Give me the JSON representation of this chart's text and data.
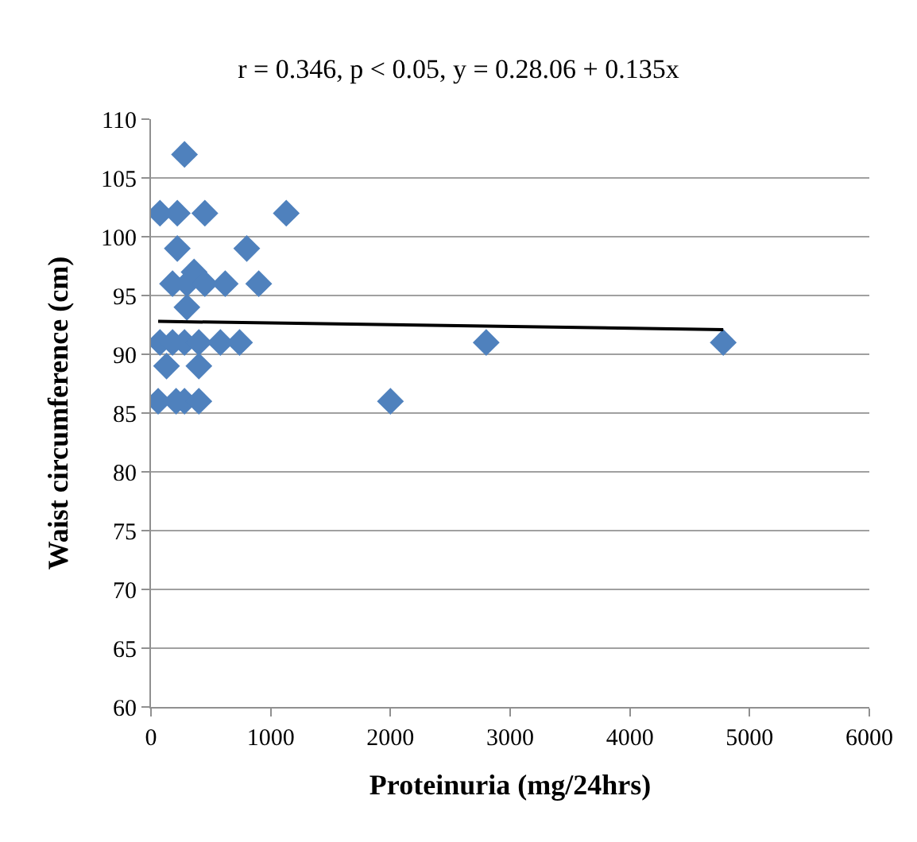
{
  "chart_data": {
    "type": "scatter",
    "title": "r = 0.346, p < 0.05, y = 0.28.06 + 0.135x",
    "xlabel": "Proteinuria (mg/24hrs)",
    "ylabel": "Waist circumference (cm)",
    "xlim": [
      0,
      6000
    ],
    "xticks": [
      0,
      1000,
      2000,
      3000,
      4000,
      5000,
      6000
    ],
    "ylim": [
      60,
      110
    ],
    "yticks": [
      60,
      65,
      70,
      75,
      80,
      85,
      90,
      95,
      100,
      105,
      110
    ],
    "grid": "y",
    "marker": "diamond",
    "series": [
      {
        "color": "#4f81bd",
        "x": [
          280,
          75,
          220,
          450,
          1130,
          220,
          800,
          360,
          180,
          300,
          450,
          620,
          900,
          300,
          75,
          180,
          280,
          400,
          580,
          740,
          2800,
          4780,
          130,
          400,
          60,
          210,
          280,
          400,
          2000
        ],
        "values": [
          107,
          102,
          102,
          102,
          102,
          99,
          99,
          97,
          96,
          96,
          96,
          96,
          96,
          94,
          91,
          91,
          91,
          91,
          91,
          91,
          91,
          91,
          89,
          89,
          86,
          86,
          86,
          86,
          86
        ]
      },
      {
        "type": "line",
        "color": "#000000",
        "marker": "none",
        "x": [
          60,
          4780
        ],
        "values": [
          92.8,
          92.1
        ]
      }
    ]
  }
}
